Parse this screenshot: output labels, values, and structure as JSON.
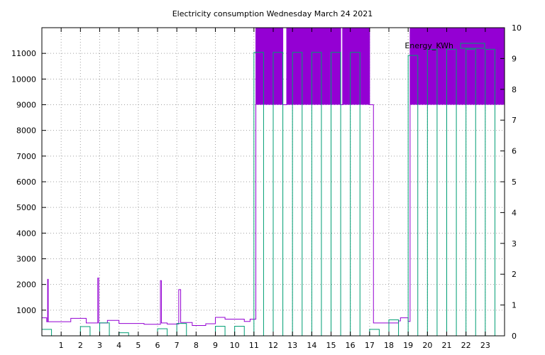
{
  "chart_data": {
    "type": "line",
    "title": "Electricity consumption Wednesday March 24 2021",
    "xlabel": "",
    "ylabel": "",
    "y2label": "",
    "xlim": [
      0,
      24
    ],
    "ylim": [
      0,
      12000
    ],
    "y2lim": [
      0,
      10
    ],
    "x_ticks": [
      1,
      2,
      3,
      4,
      5,
      6,
      7,
      8,
      9,
      10,
      11,
      12,
      13,
      14,
      15,
      16,
      17,
      18,
      19,
      20,
      21,
      22,
      23
    ],
    "y_ticks": [
      1000,
      2000,
      3000,
      4000,
      5000,
      6000,
      7000,
      8000,
      9000,
      10000,
      11000
    ],
    "y2_ticks": [
      0,
      1,
      2,
      3,
      4,
      5,
      6,
      7,
      8,
      9,
      10
    ],
    "grid": true,
    "legend_position": "top-right",
    "colors": {
      "power": "#9400d3",
      "energy": "#009e73",
      "grid": "#a0a0a0"
    },
    "series": [
      {
        "kind": "step-line",
        "axis": "y",
        "color": "#9400d3",
        "points": [
          [
            0.0,
            700
          ],
          [
            0.25,
            550
          ],
          [
            0.3,
            2200
          ],
          [
            0.33,
            550
          ],
          [
            1.5,
            680
          ],
          [
            2.3,
            500
          ],
          [
            2.9,
            2250
          ],
          [
            2.95,
            500
          ],
          [
            3.4,
            600
          ],
          [
            4.0,
            480
          ],
          [
            5.3,
            450
          ],
          [
            6.15,
            2150
          ],
          [
            6.2,
            500
          ],
          [
            6.5,
            460
          ],
          [
            7.1,
            1800
          ],
          [
            7.2,
            520
          ],
          [
            7.8,
            400
          ],
          [
            8.5,
            470
          ],
          [
            9.0,
            720
          ],
          [
            9.5,
            650
          ],
          [
            10.5,
            560
          ],
          [
            10.8,
            650
          ],
          [
            11.1,
            12000
          ],
          [
            12.5,
            9000
          ],
          [
            12.7,
            12000
          ],
          [
            15.5,
            9000
          ],
          [
            15.6,
            12000
          ],
          [
            17.0,
            9000
          ],
          [
            17.2,
            500
          ],
          [
            18.5,
            580
          ],
          [
            18.6,
            700
          ],
          [
            19.0,
            560
          ],
          [
            19.1,
            12000
          ],
          [
            24.0,
            12000
          ]
        ]
      },
      {
        "kind": "bars",
        "axis": "y2",
        "name": "Energy_KWh",
        "color": "#009e73",
        "width": 0.5,
        "points": [
          [
            0.0,
            0.21
          ],
          [
            2.0,
            0.3
          ],
          [
            3.0,
            0.42
          ],
          [
            4.0,
            0.1
          ],
          [
            6.0,
            0.23
          ],
          [
            7.0,
            0.4
          ],
          [
            9.0,
            0.31
          ],
          [
            10.0,
            0.31
          ],
          [
            11.0,
            9.2
          ],
          [
            12.0,
            9.2
          ],
          [
            13.0,
            9.2
          ],
          [
            14.0,
            9.2
          ],
          [
            15.0,
            9.2
          ],
          [
            16.0,
            9.2
          ],
          [
            17.0,
            0.21
          ],
          [
            18.0,
            0.52
          ],
          [
            19.0,
            9.1
          ],
          [
            20.0,
            9.3
          ],
          [
            21.0,
            9.3
          ],
          [
            22.0,
            9.3
          ],
          [
            23.0,
            9.3
          ]
        ]
      }
    ]
  }
}
